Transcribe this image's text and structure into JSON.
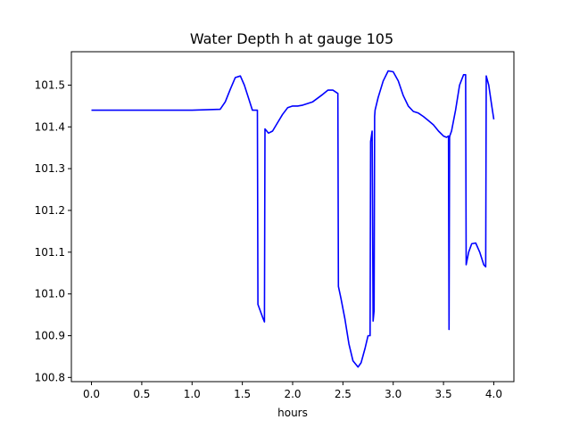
{
  "chart_data": {
    "type": "line",
    "title": "Water Depth h at gauge 105",
    "xlabel": "hours",
    "ylabel": "",
    "xlim": [
      -0.2,
      4.2
    ],
    "ylim": [
      100.79,
      101.58
    ],
    "xticks": [
      0.0,
      0.5,
      1.0,
      1.5,
      2.0,
      2.5,
      3.0,
      3.5,
      4.0
    ],
    "xtick_labels": [
      "0.0",
      "0.5",
      "1.0",
      "1.5",
      "2.0",
      "2.5",
      "3.0",
      "3.5",
      "4.0"
    ],
    "yticks": [
      100.8,
      100.9,
      101.0,
      101.1,
      101.2,
      101.3,
      101.4,
      101.5
    ],
    "ytick_labels": [
      "100.8",
      "100.9",
      "101.0",
      "101.1",
      "101.2",
      "101.3",
      "101.4",
      "101.5"
    ],
    "grid": false,
    "legend": "none",
    "series": [
      {
        "color": "#0000ff",
        "x": [
          0.0,
          0.5,
          1.0,
          1.28,
          1.33,
          1.38,
          1.43,
          1.48,
          1.52,
          1.56,
          1.6,
          1.65,
          1.655,
          1.7,
          1.72,
          1.725,
          1.76,
          1.8,
          1.85,
          1.9,
          1.95,
          2.0,
          2.05,
          2.1,
          2.2,
          2.3,
          2.35,
          2.4,
          2.45,
          2.455,
          2.48,
          2.52,
          2.56,
          2.6,
          2.65,
          2.68,
          2.72,
          2.75,
          2.77,
          2.775,
          2.79,
          2.8,
          2.81,
          2.815,
          2.82,
          2.85,
          2.9,
          2.95,
          3.0,
          3.05,
          3.1,
          3.15,
          3.2,
          3.25,
          3.3,
          3.35,
          3.4,
          3.45,
          3.5,
          3.53,
          3.55,
          3.555,
          3.56,
          3.565,
          3.58,
          3.62,
          3.66,
          3.7,
          3.72,
          3.725,
          3.75,
          3.78,
          3.82,
          3.86,
          3.9,
          3.92,
          3.925,
          3.95,
          3.98,
          4.0
        ],
        "y": [
          101.44,
          101.44,
          101.44,
          101.442,
          101.46,
          101.49,
          101.518,
          101.522,
          101.5,
          101.47,
          101.44,
          101.44,
          100.975,
          100.945,
          100.933,
          101.395,
          101.385,
          101.39,
          101.41,
          101.43,
          101.446,
          101.45,
          101.45,
          101.452,
          101.46,
          101.478,
          101.488,
          101.488,
          101.48,
          101.018,
          100.99,
          100.94,
          100.88,
          100.84,
          100.825,
          100.835,
          100.87,
          100.9,
          100.9,
          101.365,
          101.39,
          100.935,
          100.96,
          101.425,
          101.44,
          101.47,
          101.51,
          101.534,
          101.532,
          101.51,
          101.475,
          101.45,
          101.437,
          101.433,
          101.425,
          101.415,
          101.405,
          101.39,
          101.378,
          101.375,
          101.378,
          100.915,
          101.375,
          101.38,
          101.39,
          101.44,
          101.5,
          101.525,
          101.525,
          101.07,
          101.1,
          101.12,
          101.122,
          101.1,
          101.07,
          101.065,
          101.522,
          101.5,
          101.45,
          101.418
        ]
      }
    ]
  }
}
